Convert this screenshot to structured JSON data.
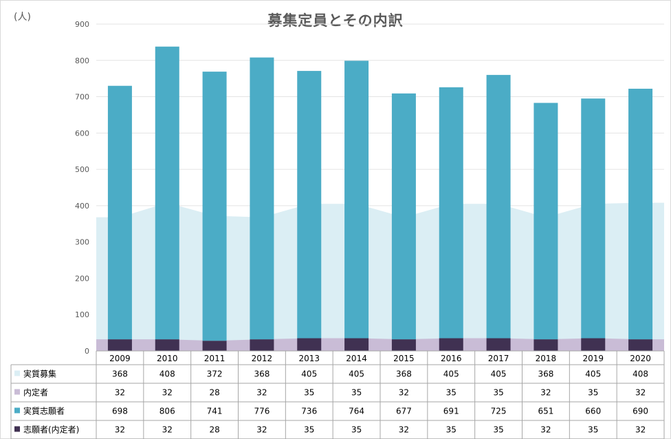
{
  "unit_label": "(人)",
  "chart_data": {
    "type": "bar",
    "title": "募集定員とその内訳",
    "categories": [
      "2009",
      "2010",
      "2011",
      "2012",
      "2013",
      "2014",
      "2015",
      "2016",
      "2017",
      "2018",
      "2019",
      "2020"
    ],
    "series": [
      {
        "name": "実質募集",
        "kind": "area",
        "color": "#dbeef4",
        "values": [
          368,
          408,
          372,
          368,
          405,
          405,
          368,
          405,
          405,
          368,
          405,
          408
        ]
      },
      {
        "name": "内定者",
        "kind": "area",
        "color": "#c9bcd6",
        "values": [
          32,
          32,
          28,
          32,
          35,
          35,
          32,
          35,
          35,
          32,
          35,
          32
        ]
      },
      {
        "name": "実質志願者",
        "kind": "bar-stacked",
        "color": "#4bacc6",
        "values": [
          698,
          806,
          741,
          776,
          736,
          764,
          677,
          691,
          725,
          651,
          660,
          690
        ]
      },
      {
        "name": "志願者(内定者)",
        "kind": "bar-stacked",
        "color": "#403152",
        "values": [
          32,
          32,
          28,
          32,
          35,
          35,
          32,
          35,
          35,
          32,
          35,
          32
        ]
      }
    ],
    "series_labels": [
      "実質募集",
      "内定者",
      "実質志願者",
      "志願者(内定者)"
    ],
    "ylim": [
      0,
      900
    ],
    "yticks": [
      0,
      100,
      200,
      300,
      400,
      500,
      600,
      700,
      800,
      900
    ],
    "grid": true,
    "legend": "data-table"
  }
}
